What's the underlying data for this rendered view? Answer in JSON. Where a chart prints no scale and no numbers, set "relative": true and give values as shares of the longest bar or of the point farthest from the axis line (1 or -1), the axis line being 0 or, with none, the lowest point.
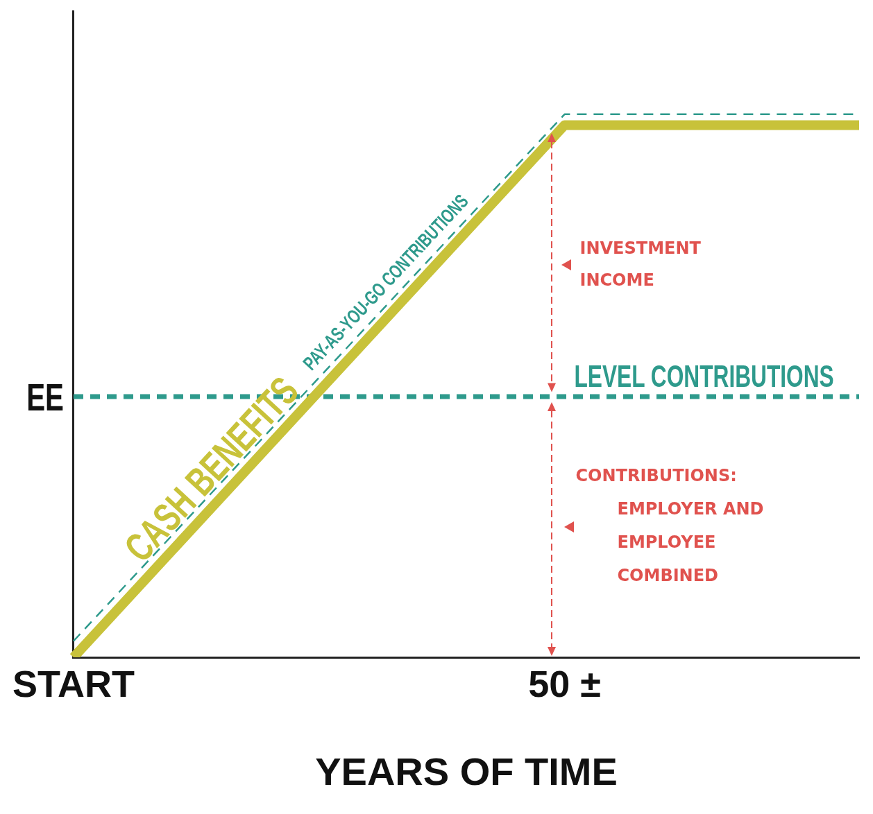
{
  "chart_data": {
    "type": "line",
    "relative": true,
    "xlabel": "YEARS OF TIME",
    "ylabel": "EE",
    "categories": [
      "START",
      null,
      null,
      null,
      null,
      null,
      null,
      null,
      null,
      null,
      "50 ±",
      null,
      null,
      null,
      null,
      null,
      null
    ],
    "grid": false,
    "legend": false,
    "marker": "none",
    "series": [
      {
        "name": "CASH BENEFITS",
        "color": "#c8c23a",
        "values": [
          0,
          null,
          null,
          null,
          null,
          null,
          null,
          null,
          null,
          null,
          0.98,
          null,
          null,
          null,
          null,
          null,
          0.98
        ],
        "line_style": "solid"
      },
      {
        "name": "PAY-AS-YOU-GO CONTRIBUTIONS",
        "color": "#2e9a8c",
        "values": [
          0.03,
          null,
          null,
          null,
          null,
          null,
          null,
          null,
          null,
          null,
          1,
          null,
          null,
          null,
          null,
          null,
          1
        ],
        "line_style": "dashed"
      },
      {
        "name": "LEVEL CONTRIBUTIONS",
        "color": "#2e9a8c",
        "values": [
          0.48,
          null,
          null,
          null,
          null,
          null,
          null,
          null,
          null,
          null,
          null,
          null,
          null,
          null,
          null,
          null,
          0.48
        ],
        "line_style": "dashed"
      }
    ],
    "annotations": [
      "INVESTMENT INCOME",
      "CONTRIBUTIONS: EMPLOYER AND EMPLOYEE COMBINED"
    ]
  }
}
